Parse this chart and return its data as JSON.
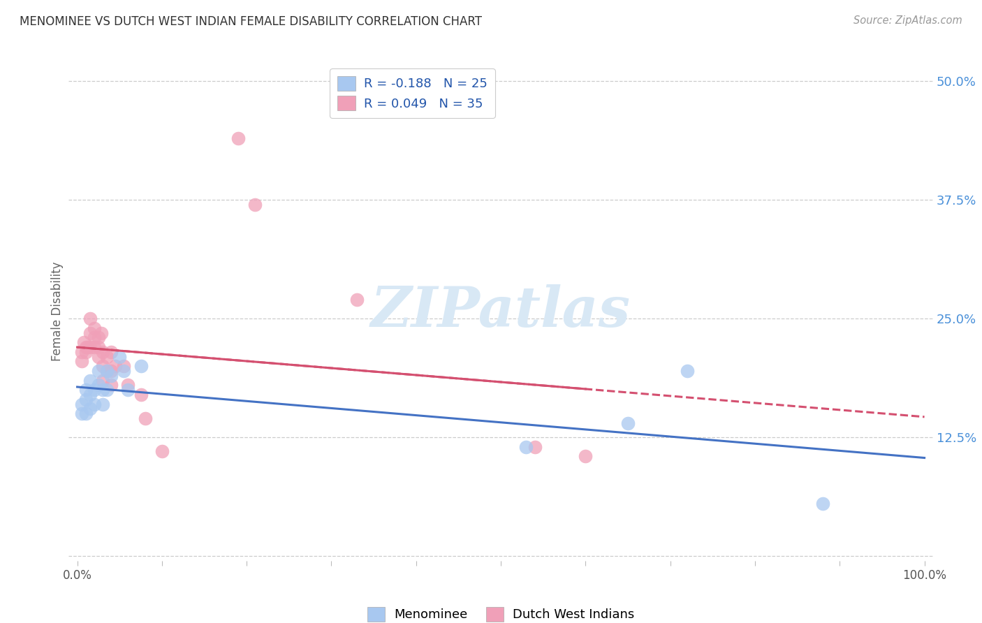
{
  "title": "MENOMINEE VS DUTCH WEST INDIAN FEMALE DISABILITY CORRELATION CHART",
  "source": "Source: ZipAtlas.com",
  "ylabel": "Female Disability",
  "legend_labels": [
    "Menominee",
    "Dutch West Indians"
  ],
  "legend_r": [
    -0.188,
    0.049
  ],
  "legend_n": [
    25,
    35
  ],
  "yticks": [
    0.0,
    0.125,
    0.25,
    0.375,
    0.5
  ],
  "ytick_labels": [
    "",
    "12.5%",
    "25.0%",
    "37.5%",
    "50.0%"
  ],
  "blue_color": "#A8C8F0",
  "pink_color": "#F0A0B8",
  "blue_line_color": "#4472C4",
  "pink_line_color": "#D45070",
  "watermark_color": "#D8E8F5",
  "menominee_x": [
    0.005,
    0.005,
    0.01,
    0.01,
    0.01,
    0.015,
    0.015,
    0.015,
    0.02,
    0.02,
    0.025,
    0.025,
    0.03,
    0.03,
    0.035,
    0.035,
    0.04,
    0.05,
    0.055,
    0.06,
    0.075,
    0.53,
    0.65,
    0.72,
    0.88
  ],
  "menominee_y": [
    0.16,
    0.15,
    0.175,
    0.165,
    0.15,
    0.185,
    0.17,
    0.155,
    0.175,
    0.16,
    0.195,
    0.18,
    0.175,
    0.16,
    0.195,
    0.175,
    0.19,
    0.21,
    0.195,
    0.175,
    0.2,
    0.115,
    0.14,
    0.195,
    0.055
  ],
  "dutch_x": [
    0.005,
    0.005,
    0.008,
    0.01,
    0.01,
    0.012,
    0.015,
    0.015,
    0.015,
    0.02,
    0.02,
    0.02,
    0.025,
    0.025,
    0.025,
    0.028,
    0.03,
    0.03,
    0.03,
    0.035,
    0.035,
    0.04,
    0.04,
    0.04,
    0.045,
    0.055,
    0.06,
    0.075,
    0.08,
    0.1,
    0.19,
    0.21,
    0.33,
    0.54,
    0.6
  ],
  "dutch_y": [
    0.215,
    0.205,
    0.225,
    0.22,
    0.215,
    0.22,
    0.25,
    0.235,
    0.22,
    0.24,
    0.23,
    0.22,
    0.23,
    0.22,
    0.21,
    0.235,
    0.215,
    0.2,
    0.185,
    0.21,
    0.195,
    0.215,
    0.195,
    0.18,
    0.2,
    0.2,
    0.18,
    0.17,
    0.145,
    0.11,
    0.44,
    0.37,
    0.27,
    0.115,
    0.105
  ],
  "background_color": "#FFFFFF"
}
